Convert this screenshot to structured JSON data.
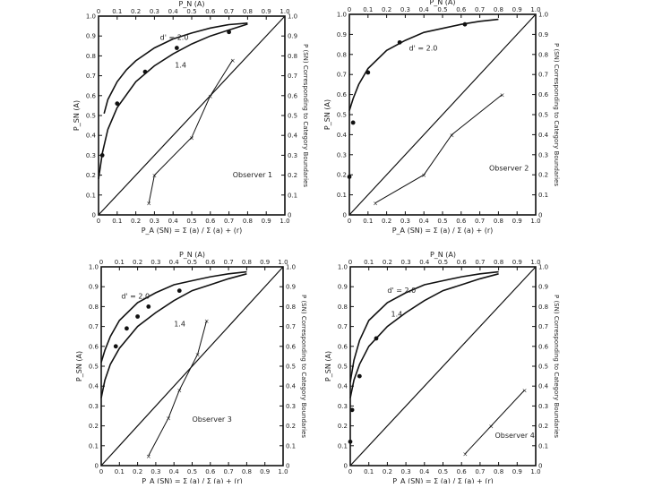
{
  "chart_data": [
    {
      "type": "line",
      "title": "Observer 1",
      "top_label": "P_N (A)",
      "left_label": "P_SN (A)",
      "bottom_label": "P_A (SN) = Σ (a) / Σ (a) + (r)",
      "right_label": "P (SN) Corresponding to Category Boundaries",
      "xlim": [
        0,
        1
      ],
      "ylim": [
        0,
        1
      ],
      "x_ticks": [
        "0",
        "0.1",
        "0.2",
        "0.3",
        "0.4",
        "0.5",
        "0.6",
        "0.7",
        "0.8",
        "0.9",
        "1.0"
      ],
      "y_ticks": [
        "0",
        "0.1",
        "0.2",
        "0.3",
        "0.4",
        "0.5",
        "0.6",
        "0.7",
        "0.8",
        "0.9",
        "1.0"
      ],
      "top_ticks": [
        "0",
        "0.1",
        "0.2",
        "0.3",
        "0.4",
        "0.5",
        "0.6",
        "0.7",
        "0.8",
        "0.9",
        "1.0"
      ],
      "right_ticks": [
        "0",
        "0.1",
        "0.2",
        "0.3",
        "0.4",
        "0.5",
        "0.6",
        "0.7",
        "0.8",
        "0.9",
        "1.0"
      ],
      "series": [
        {
          "name": "d' = 2.0",
          "style": "curve",
          "x": [
            0.03,
            0.05,
            0.1,
            0.15,
            0.2,
            0.3,
            0.4,
            0.5,
            0.6,
            0.7,
            0.8
          ],
          "y": [
            0.51,
            0.58,
            0.67,
            0.73,
            0.775,
            0.84,
            0.885,
            0.915,
            0.94,
            0.957,
            0.965
          ]
        },
        {
          "name": "1.4",
          "style": "curve",
          "x": [
            0.0,
            0.02,
            0.05,
            0.1,
            0.2,
            0.3,
            0.4,
            0.5,
            0.6,
            0.7,
            0.8
          ],
          "y": [
            0.18,
            0.31,
            0.43,
            0.54,
            0.67,
            0.75,
            0.81,
            0.86,
            0.9,
            0.93,
            0.96
          ]
        },
        {
          "name": "",
          "style": "points",
          "x": [
            0.02,
            0.1,
            0.25,
            0.42,
            0.7
          ],
          "y": [
            0.3,
            0.56,
            0.72,
            0.84,
            0.92
          ]
        },
        {
          "name": "",
          "style": "crosses",
          "x": [
            0.27,
            0.3,
            0.5,
            0.6,
            0.72
          ],
          "y": [
            0.06,
            0.2,
            0.39,
            0.6,
            0.78
          ]
        }
      ],
      "annotations": [
        "d' = 2.0",
        "1.4",
        "Observer 1"
      ]
    },
    {
      "type": "line",
      "title": "Observer 2",
      "top_label": "P_N (A)",
      "left_label": "P_SN (A)",
      "bottom_label": "P_A (SN) = Σ (a) / Σ (a) + (r)",
      "right_label": "P (SN) Corresponding to Category Boundaries",
      "xlim": [
        0,
        1
      ],
      "ylim": [
        0,
        1
      ],
      "x_ticks": [
        "0",
        "0.1",
        "0.2",
        "0.3",
        "0.4",
        "0.5",
        "0.6",
        "0.7",
        "0.8",
        "0.9",
        "1.0"
      ],
      "y_ticks": [
        "0",
        "0.1",
        "0.2",
        "0.3",
        "0.4",
        "0.5",
        "0.6",
        "0.7",
        "0.8",
        "0.9",
        "1.0"
      ],
      "top_ticks": [
        "0",
        "0.1",
        "0.2",
        "0.3",
        "0.4",
        "0.5",
        "0.6",
        "0.7",
        "0.8",
        "0.9",
        "1.0"
      ],
      "right_ticks": [
        "0",
        "0.1",
        "0.2",
        "0.3",
        "0.4",
        "0.5",
        "0.6",
        "0.7",
        "0.8",
        "0.9",
        "1.0"
      ],
      "series": [
        {
          "name": "d' = 2.0",
          "style": "curve",
          "x": [
            0.0,
            0.02,
            0.05,
            0.1,
            0.2,
            0.3,
            0.4,
            0.5,
            0.6,
            0.7,
            0.8
          ],
          "y": [
            0.52,
            0.58,
            0.65,
            0.73,
            0.82,
            0.87,
            0.91,
            0.93,
            0.95,
            0.965,
            0.975
          ]
        },
        {
          "name": "",
          "style": "points",
          "x": [
            0.0,
            0.02,
            0.1,
            0.27,
            0.62
          ],
          "y": [
            0.19,
            0.46,
            0.71,
            0.86,
            0.95
          ]
        },
        {
          "name": "",
          "style": "crosses",
          "x": [
            0.14,
            0.4,
            0.55,
            0.82
          ],
          "y": [
            0.06,
            0.2,
            0.4,
            0.6
          ]
        }
      ],
      "annotations": [
        "d' = 2.0",
        "Observer 2"
      ]
    },
    {
      "type": "line",
      "title": "Observer 3",
      "top_label": "P_N (A)",
      "left_label": "P_SN (A)",
      "bottom_label": "P_A (SN) = Σ (a) / Σ (a) + (r)",
      "right_label": "P (SN) Corresponding to Category Boundaries",
      "xlim": [
        0,
        1
      ],
      "ylim": [
        0,
        1
      ],
      "x_ticks": [
        "0",
        "0.1",
        "0.2",
        "0.3",
        "0.4",
        "0.5",
        "0.6",
        "0.7",
        "0.8",
        "0.9",
        "1.0"
      ],
      "y_ticks": [
        "0",
        "0.1",
        "0.2",
        "0.3",
        "0.4",
        "0.5",
        "0.6",
        "0.7",
        "0.8",
        "0.9",
        "1.0"
      ],
      "top_ticks": [
        "0",
        "0.1",
        "0.2",
        "0.3",
        "0.4",
        "0.5",
        "0.6",
        "0.7",
        "0.8",
        "0.9",
        "1.0"
      ],
      "right_ticks": [
        "0",
        "0.1",
        "0.2",
        "0.3",
        "0.4",
        "0.5",
        "0.6",
        "0.7",
        "0.8",
        "0.9",
        "1.0"
      ],
      "series": [
        {
          "name": "d' = 2.0",
          "style": "curve",
          "x": [
            0.0,
            0.02,
            0.05,
            0.1,
            0.2,
            0.3,
            0.4,
            0.5,
            0.6,
            0.7,
            0.8
          ],
          "y": [
            0.52,
            0.58,
            0.65,
            0.73,
            0.82,
            0.87,
            0.91,
            0.93,
            0.95,
            0.965,
            0.975
          ]
        },
        {
          "name": "1.4",
          "style": "curve",
          "x": [
            0.0,
            0.02,
            0.05,
            0.1,
            0.2,
            0.3,
            0.4,
            0.5,
            0.6,
            0.7,
            0.8
          ],
          "y": [
            0.34,
            0.43,
            0.51,
            0.59,
            0.7,
            0.77,
            0.83,
            0.88,
            0.91,
            0.94,
            0.965
          ]
        },
        {
          "name": "",
          "style": "points",
          "x": [
            0.08,
            0.14,
            0.2,
            0.26,
            0.43
          ],
          "y": [
            0.6,
            0.69,
            0.75,
            0.8,
            0.88
          ]
        },
        {
          "name": "",
          "style": "crosses",
          "x": [
            0.26,
            0.37,
            0.43,
            0.53,
            0.58
          ],
          "y": [
            0.05,
            0.24,
            0.38,
            0.56,
            0.73
          ]
        }
      ],
      "annotations": [
        "d' = 2.0",
        "1.4",
        "Observer 3"
      ]
    },
    {
      "type": "line",
      "title": "Observer 4",
      "top_label": "P_N (A)",
      "left_label": "P_SN (A)",
      "bottom_label": "P_A (SN) = Σ (a) / Σ (a) + (r)",
      "right_label": "P (SN) Corresponding to Category Boundaries",
      "xlim": [
        0,
        1
      ],
      "ylim": [
        0,
        1
      ],
      "x_ticks": [
        "0",
        "0.1",
        "0.2",
        "0.3",
        "0.4",
        "0.5",
        "0.6",
        "0.7",
        "0.8",
        "0.9",
        "1.0"
      ],
      "y_ticks": [
        "0",
        "0.1",
        "0.2",
        "0.3",
        "0.4",
        "0.5",
        "0.6",
        "0.7",
        "0.8",
        "0.9",
        "1.0"
      ],
      "top_ticks": [
        "0",
        "0.1",
        "0.2",
        "0.3",
        "0.4",
        "0.5",
        "0.6",
        "0.7",
        "0.8",
        "0.9",
        "1.0"
      ],
      "right_ticks": [
        "0",
        "0.1",
        "0.2",
        "0.3",
        "0.4",
        "0.5",
        "0.6",
        "0.7",
        "0.8",
        "0.9",
        "1.0"
      ],
      "series": [
        {
          "name": "d' = 2.0",
          "style": "curve",
          "x": [
            0.0,
            0.02,
            0.05,
            0.1,
            0.2,
            0.3,
            0.4,
            0.5,
            0.6,
            0.7,
            0.8
          ],
          "y": [
            0.42,
            0.53,
            0.63,
            0.73,
            0.82,
            0.87,
            0.91,
            0.93,
            0.95,
            0.965,
            0.975
          ]
        },
        {
          "name": "1.4",
          "style": "curve",
          "x": [
            0.0,
            0.02,
            0.05,
            0.1,
            0.2,
            0.3,
            0.4,
            0.5,
            0.6,
            0.7,
            0.8
          ],
          "y": [
            0.34,
            0.43,
            0.51,
            0.6,
            0.7,
            0.77,
            0.83,
            0.88,
            0.91,
            0.94,
            0.965
          ]
        },
        {
          "name": "",
          "style": "points",
          "x": [
            0.0,
            0.01,
            0.05,
            0.14
          ],
          "y": [
            0.12,
            0.28,
            0.45,
            0.64
          ]
        },
        {
          "name": "",
          "style": "crosses",
          "x": [
            0.62,
            0.76,
            0.94
          ],
          "y": [
            0.06,
            0.2,
            0.38
          ]
        }
      ],
      "annotations": [
        "d' = 2.0",
        "1.4",
        "Observer 4"
      ]
    }
  ]
}
